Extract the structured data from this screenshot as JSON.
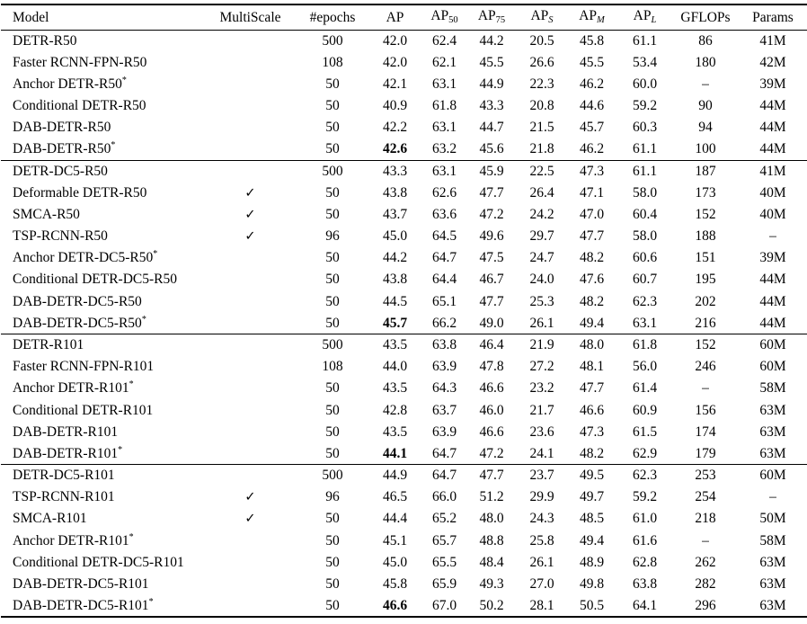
{
  "table": {
    "checkmark_glyph": "✓",
    "columns": [
      {
        "key": "model",
        "label": "Model",
        "sub": "",
        "sub_italic": false
      },
      {
        "key": "multiscale",
        "label": "MultiScale",
        "sub": "",
        "sub_italic": false
      },
      {
        "key": "epochs",
        "label": "#epochs",
        "sub": "",
        "sub_italic": false
      },
      {
        "key": "ap",
        "label": "AP",
        "sub": "",
        "sub_italic": false
      },
      {
        "key": "ap50",
        "label": "AP",
        "sub": "50",
        "sub_italic": false
      },
      {
        "key": "ap75",
        "label": "AP",
        "sub": "75",
        "sub_italic": false
      },
      {
        "key": "aps",
        "label": "AP",
        "sub": "S",
        "sub_italic": true
      },
      {
        "key": "apm",
        "label": "AP",
        "sub": "M",
        "sub_italic": true
      },
      {
        "key": "apl",
        "label": "AP",
        "sub": "L",
        "sub_italic": true
      },
      {
        "key": "gflops",
        "label": "GFLOPs",
        "sub": "",
        "sub_italic": false
      },
      {
        "key": "params",
        "label": "Params",
        "sub": "",
        "sub_italic": false
      }
    ],
    "sections": [
      {
        "rows": [
          {
            "model": "DETR-R50",
            "multiscale": false,
            "epochs": "500",
            "ap": "42.0",
            "ap_bold": false,
            "ap50": "62.4",
            "ap75": "44.2",
            "aps": "20.5",
            "apm": "45.8",
            "apl": "61.1",
            "gflops": "86",
            "params": "41M"
          },
          {
            "model": "Faster RCNN-FPN-R50",
            "multiscale": false,
            "epochs": "108",
            "ap": "42.0",
            "ap_bold": false,
            "ap50": "62.1",
            "ap75": "45.5",
            "aps": "26.6",
            "apm": "45.5",
            "apl": "53.4",
            "gflops": "180",
            "params": "42M"
          },
          {
            "model": "Anchor DETR-R50*",
            "multiscale": false,
            "epochs": "50",
            "ap": "42.1",
            "ap_bold": false,
            "ap50": "63.1",
            "ap75": "44.9",
            "aps": "22.3",
            "apm": "46.2",
            "apl": "60.0",
            "gflops": "–",
            "params": "39M"
          },
          {
            "model": "Conditional DETR-R50",
            "multiscale": false,
            "epochs": "50",
            "ap": "40.9",
            "ap_bold": false,
            "ap50": "61.8",
            "ap75": "43.3",
            "aps": "20.8",
            "apm": "44.6",
            "apl": "59.2",
            "gflops": "90",
            "params": "44M"
          },
          {
            "model": "DAB-DETR-R50",
            "multiscale": false,
            "epochs": "50",
            "ap": "42.2",
            "ap_bold": false,
            "ap50": "63.1",
            "ap75": "44.7",
            "aps": "21.5",
            "apm": "45.7",
            "apl": "60.3",
            "gflops": "94",
            "params": "44M"
          },
          {
            "model": "DAB-DETR-R50*",
            "multiscale": false,
            "epochs": "50",
            "ap": "42.6",
            "ap_bold": true,
            "ap50": "63.2",
            "ap75": "45.6",
            "aps": "21.8",
            "apm": "46.2",
            "apl": "61.1",
            "gflops": "100",
            "params": "44M"
          }
        ]
      },
      {
        "rows": [
          {
            "model": "DETR-DC5-R50",
            "multiscale": false,
            "epochs": "500",
            "ap": "43.3",
            "ap_bold": false,
            "ap50": "63.1",
            "ap75": "45.9",
            "aps": "22.5",
            "apm": "47.3",
            "apl": "61.1",
            "gflops": "187",
            "params": "41M"
          },
          {
            "model": "Deformable DETR-R50",
            "multiscale": true,
            "epochs": "50",
            "ap": "43.8",
            "ap_bold": false,
            "ap50": "62.6",
            "ap75": "47.7",
            "aps": "26.4",
            "apm": "47.1",
            "apl": "58.0",
            "gflops": "173",
            "params": "40M"
          },
          {
            "model": "SMCA-R50",
            "multiscale": true,
            "epochs": "50",
            "ap": "43.7",
            "ap_bold": false,
            "ap50": "63.6",
            "ap75": "47.2",
            "aps": "24.2",
            "apm": "47.0",
            "apl": "60.4",
            "gflops": "152",
            "params": "40M"
          },
          {
            "model": "TSP-RCNN-R50",
            "multiscale": true,
            "epochs": "96",
            "ap": "45.0",
            "ap_bold": false,
            "ap50": "64.5",
            "ap75": "49.6",
            "aps": "29.7",
            "apm": "47.7",
            "apl": "58.0",
            "gflops": "188",
            "params": "–"
          },
          {
            "model": "Anchor DETR-DC5-R50*",
            "multiscale": false,
            "epochs": "50",
            "ap": "44.2",
            "ap_bold": false,
            "ap50": "64.7",
            "ap75": "47.5",
            "aps": "24.7",
            "apm": "48.2",
            "apl": "60.6",
            "gflops": "151",
            "params": "39M"
          },
          {
            "model": "Conditional DETR-DC5-R50",
            "multiscale": false,
            "epochs": "50",
            "ap": "43.8",
            "ap_bold": false,
            "ap50": "64.4",
            "ap75": "46.7",
            "aps": "24.0",
            "apm": "47.6",
            "apl": "60.7",
            "gflops": "195",
            "params": "44M"
          },
          {
            "model": "DAB-DETR-DC5-R50",
            "multiscale": false,
            "epochs": "50",
            "ap": "44.5",
            "ap_bold": false,
            "ap50": "65.1",
            "ap75": "47.7",
            "aps": "25.3",
            "apm": "48.2",
            "apl": "62.3",
            "gflops": "202",
            "params": "44M"
          },
          {
            "model": "DAB-DETR-DC5-R50*",
            "multiscale": false,
            "epochs": "50",
            "ap": "45.7",
            "ap_bold": true,
            "ap50": "66.2",
            "ap75": "49.0",
            "aps": "26.1",
            "apm": "49.4",
            "apl": "63.1",
            "gflops": "216",
            "params": "44M"
          }
        ]
      },
      {
        "rows": [
          {
            "model": "DETR-R101",
            "multiscale": false,
            "epochs": "500",
            "ap": "43.5",
            "ap_bold": false,
            "ap50": "63.8",
            "ap75": "46.4",
            "aps": "21.9",
            "apm": "48.0",
            "apl": "61.8",
            "gflops": "152",
            "params": "60M"
          },
          {
            "model": "Faster RCNN-FPN-R101",
            "multiscale": false,
            "epochs": "108",
            "ap": "44.0",
            "ap_bold": false,
            "ap50": "63.9",
            "ap75": "47.8",
            "aps": "27.2",
            "apm": "48.1",
            "apl": "56.0",
            "gflops": "246",
            "params": "60M"
          },
          {
            "model": "Anchor DETR-R101*",
            "multiscale": false,
            "epochs": "50",
            "ap": "43.5",
            "ap_bold": false,
            "ap50": "64.3",
            "ap75": "46.6",
            "aps": "23.2",
            "apm": "47.7",
            "apl": "61.4",
            "gflops": "–",
            "params": "58M"
          },
          {
            "model": "Conditional DETR-R101",
            "multiscale": false,
            "epochs": "50",
            "ap": "42.8",
            "ap_bold": false,
            "ap50": "63.7",
            "ap75": "46.0",
            "aps": "21.7",
            "apm": "46.6",
            "apl": "60.9",
            "gflops": "156",
            "params": "63M"
          },
          {
            "model": "DAB-DETR-R101",
            "multiscale": false,
            "epochs": "50",
            "ap": "43.5",
            "ap_bold": false,
            "ap50": "63.9",
            "ap75": "46.6",
            "aps": "23.6",
            "apm": "47.3",
            "apl": "61.5",
            "gflops": "174",
            "params": "63M"
          },
          {
            "model": "DAB-DETR-R101*",
            "multiscale": false,
            "epochs": "50",
            "ap": "44.1",
            "ap_bold": true,
            "ap50": "64.7",
            "ap75": "47.2",
            "aps": "24.1",
            "apm": "48.2",
            "apl": "62.9",
            "gflops": "179",
            "params": "63M"
          }
        ]
      },
      {
        "rows": [
          {
            "model": "DETR-DC5-R101",
            "multiscale": false,
            "epochs": "500",
            "ap": "44.9",
            "ap_bold": false,
            "ap50": "64.7",
            "ap75": "47.7",
            "aps": "23.7",
            "apm": "49.5",
            "apl": "62.3",
            "gflops": "253",
            "params": "60M"
          },
          {
            "model": "TSP-RCNN-R101",
            "multiscale": true,
            "epochs": "96",
            "ap": "46.5",
            "ap_bold": false,
            "ap50": "66.0",
            "ap75": "51.2",
            "aps": "29.9",
            "apm": "49.7",
            "apl": "59.2",
            "gflops": "254",
            "params": "–"
          },
          {
            "model": "SMCA-R101",
            "multiscale": true,
            "epochs": "50",
            "ap": "44.4",
            "ap_bold": false,
            "ap50": "65.2",
            "ap75": "48.0",
            "aps": "24.3",
            "apm": "48.5",
            "apl": "61.0",
            "gflops": "218",
            "params": "50M"
          },
          {
            "model": "Anchor DETR-R101*",
            "multiscale": false,
            "epochs": "50",
            "ap": "45.1",
            "ap_bold": false,
            "ap50": "65.7",
            "ap75": "48.8",
            "aps": "25.8",
            "apm": "49.4",
            "apl": "61.6",
            "gflops": "–",
            "params": "58M"
          },
          {
            "model": "Conditional DETR-DC5-R101",
            "multiscale": false,
            "epochs": "50",
            "ap": "45.0",
            "ap_bold": false,
            "ap50": "65.5",
            "ap75": "48.4",
            "aps": "26.1",
            "apm": "48.9",
            "apl": "62.8",
            "gflops": "262",
            "params": "63M"
          },
          {
            "model": "DAB-DETR-DC5-R101",
            "multiscale": false,
            "epochs": "50",
            "ap": "45.8",
            "ap_bold": false,
            "ap50": "65.9",
            "ap75": "49.3",
            "aps": "27.0",
            "apm": "49.8",
            "apl": "63.8",
            "gflops": "282",
            "params": "63M"
          },
          {
            "model": "DAB-DETR-DC5-R101*",
            "multiscale": false,
            "epochs": "50",
            "ap": "46.6",
            "ap_bold": true,
            "ap50": "67.0",
            "ap75": "50.2",
            "aps": "28.1",
            "apm": "50.5",
            "apl": "64.1",
            "gflops": "296",
            "params": "63M"
          }
        ]
      }
    ]
  }
}
